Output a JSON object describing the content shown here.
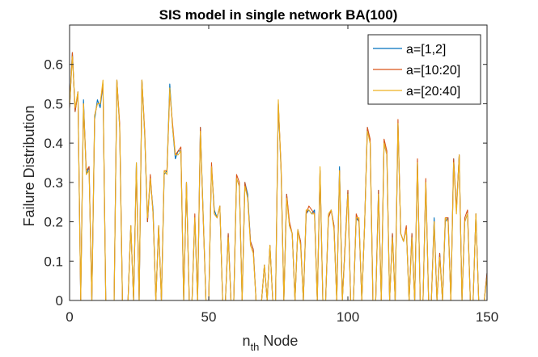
{
  "chart_data": {
    "type": "line",
    "title": "SIS model in single network BA(100)",
    "xlabel": {
      "main": "n",
      "sub": "th",
      "rest": " Node"
    },
    "ylabel": "Failure Distribution",
    "xlim": [
      0,
      150
    ],
    "ylim": [
      0,
      0.7
    ],
    "xticks": [
      0,
      50,
      100,
      150
    ],
    "yticks": [
      0,
      0.1,
      0.2,
      0.3,
      0.4,
      0.5,
      0.6
    ],
    "ytick_labels": [
      "0",
      "0.1",
      "0.2",
      "0.3",
      "0.4",
      "0.5",
      "0.6"
    ],
    "grid": false,
    "legend_position": "top-right",
    "x": [
      0,
      1,
      2,
      3,
      4,
      5,
      6,
      7,
      8,
      9,
      10,
      11,
      12,
      13,
      14,
      15,
      16,
      17,
      18,
      19,
      20,
      21,
      22,
      23,
      24,
      25,
      26,
      27,
      28,
      29,
      30,
      31,
      32,
      33,
      34,
      35,
      36,
      37,
      38,
      39,
      40,
      41,
      42,
      43,
      44,
      45,
      46,
      47,
      48,
      49,
      50,
      51,
      52,
      53,
      54,
      55,
      56,
      57,
      58,
      59,
      60,
      61,
      62,
      63,
      64,
      65,
      66,
      67,
      68,
      69,
      70,
      71,
      72,
      73,
      74,
      75,
      76,
      77,
      78,
      79,
      80,
      81,
      82,
      83,
      84,
      85,
      86,
      87,
      88,
      89,
      90,
      91,
      92,
      93,
      94,
      95,
      96,
      97,
      98,
      99,
      100,
      101,
      102,
      103,
      104,
      105,
      106,
      107,
      108,
      109,
      110,
      111,
      112,
      113,
      114,
      115,
      116,
      117,
      118,
      119,
      120,
      121,
      122,
      123,
      124,
      125,
      126,
      127,
      128,
      129,
      130,
      131,
      132,
      133,
      134,
      135,
      136,
      137,
      138,
      139,
      140,
      141,
      142,
      143,
      144,
      145,
      146,
      147,
      148,
      149,
      150
    ],
    "series": [
      {
        "name": "a=[1,2]",
        "color": "#0072BD",
        "values": [
          0.49,
          0.63,
          0.48,
          0.53,
          0,
          0.51,
          0.32,
          0.34,
          0,
          0.46,
          0.51,
          0.49,
          0.55,
          0,
          0,
          0,
          0,
          0.56,
          0.44,
          0,
          0,
          0,
          0.19,
          0,
          0.35,
          0,
          0.56,
          0.42,
          0.2,
          0.31,
          0.23,
          0,
          0.19,
          0,
          0.32,
          0.33,
          0.55,
          0.44,
          0.36,
          0.38,
          0.38,
          0,
          0.3,
          0,
          0,
          0.21,
          0,
          0.44,
          0.22,
          0,
          0,
          0.34,
          0.23,
          0.21,
          0.24,
          0,
          0,
          0.17,
          0,
          0,
          0.31,
          0.29,
          0,
          0.3,
          0.27,
          0.15,
          0.13,
          0,
          0,
          0,
          0.09,
          0,
          0.14,
          0,
          0,
          0.5,
          0.33,
          0,
          0.27,
          0.19,
          0.17,
          0,
          0.18,
          0.15,
          0,
          0.22,
          0.23,
          0.22,
          0.23,
          0,
          0.33,
          0,
          0,
          0.21,
          0.23,
          0.19,
          0,
          0.34,
          0,
          0.14,
          0.28,
          0,
          0,
          0.21,
          0.2,
          0,
          0.19,
          0.44,
          0.4,
          0,
          0,
          0.28,
          0,
          0.4,
          0.37,
          0,
          0.17,
          0,
          0.45,
          0.17,
          0.15,
          0.18,
          0,
          0.17,
          0,
          0.35,
          0,
          0,
          0.3,
          0,
          0,
          0.21,
          0,
          0.12,
          0,
          0.2,
          0.21,
          0,
          0.36,
          0.23,
          0.37,
          0,
          0.2,
          0.22,
          0,
          0,
          0.22,
          0,
          0,
          0,
          0.07
        ]
      },
      {
        "name": "a=[10:20]",
        "color": "#D95319",
        "values": [
          0.49,
          0.63,
          0.48,
          0.53,
          0,
          0.5,
          0.33,
          0.34,
          0,
          0.47,
          0.5,
          0.5,
          0.55,
          0,
          0,
          0,
          0,
          0.56,
          0.45,
          0,
          0,
          0,
          0.19,
          0,
          0.34,
          0,
          0.56,
          0.43,
          0.2,
          0.32,
          0.22,
          0,
          0.19,
          0,
          0.33,
          0.33,
          0.53,
          0.45,
          0.37,
          0.38,
          0.39,
          0,
          0.3,
          0,
          0,
          0.22,
          0,
          0.44,
          0.21,
          0,
          0,
          0.35,
          0.22,
          0.21,
          0.24,
          0,
          0,
          0.17,
          0,
          0,
          0.32,
          0.3,
          0,
          0.3,
          0.26,
          0.15,
          0.13,
          0,
          0,
          0,
          0.09,
          0,
          0.14,
          0,
          0,
          0.5,
          0.34,
          0,
          0.27,
          0.2,
          0.17,
          0,
          0.18,
          0.15,
          0,
          0.22,
          0.24,
          0.23,
          0.22,
          0,
          0.33,
          0,
          0,
          0.21,
          0.23,
          0.19,
          0,
          0.33,
          0,
          0.14,
          0.28,
          0,
          0,
          0.22,
          0.2,
          0,
          0.19,
          0.44,
          0.41,
          0,
          0,
          0.28,
          0,
          0.41,
          0.38,
          0,
          0.17,
          0,
          0.46,
          0.17,
          0.15,
          0.19,
          0,
          0.17,
          0,
          0.36,
          0,
          0,
          0.31,
          0,
          0,
          0.2,
          0,
          0.12,
          0,
          0.21,
          0.21,
          0,
          0.36,
          0.23,
          0.37,
          0,
          0.21,
          0.23,
          0,
          0,
          0.22,
          0,
          0,
          0,
          0.07
        ]
      },
      {
        "name": "a=[20:40]",
        "color": "#EDB120",
        "values": [
          0.49,
          0.62,
          0.49,
          0.53,
          0,
          0.5,
          0.32,
          0.33,
          0,
          0.47,
          0.5,
          0.5,
          0.56,
          0,
          0,
          0,
          0,
          0.56,
          0.44,
          0,
          0,
          0,
          0.19,
          0,
          0.35,
          0,
          0.56,
          0.42,
          0.21,
          0.31,
          0.22,
          0,
          0.19,
          0,
          0.33,
          0.32,
          0.54,
          0.44,
          0.37,
          0.37,
          0.38,
          0,
          0.3,
          0,
          0,
          0.21,
          0,
          0.43,
          0.22,
          0,
          0,
          0.34,
          0.22,
          0.21,
          0.24,
          0,
          0,
          0.16,
          0,
          0,
          0.31,
          0.29,
          0,
          0.29,
          0.26,
          0.14,
          0.12,
          0,
          0,
          0,
          0.09,
          0,
          0.14,
          0,
          0,
          0.51,
          0.33,
          0,
          0.26,
          0.19,
          0.17,
          0,
          0.18,
          0.14,
          0,
          0.23,
          0.23,
          0.22,
          0.22,
          0,
          0.34,
          0,
          0,
          0.22,
          0.23,
          0.18,
          0,
          0.33,
          0,
          0.13,
          0.27,
          0,
          0,
          0.21,
          0.21,
          0,
          0.19,
          0.43,
          0.4,
          0,
          0,
          0.27,
          0,
          0.4,
          0.37,
          0,
          0.16,
          0,
          0.45,
          0.17,
          0.15,
          0.18,
          0,
          0.16,
          0,
          0.35,
          0,
          0,
          0.3,
          0,
          0,
          0.2,
          0,
          0.11,
          0,
          0.21,
          0.2,
          0,
          0.35,
          0.22,
          0.37,
          0,
          0.2,
          0.22,
          0,
          0,
          0.22,
          0,
          0,
          0,
          0.06
        ]
      }
    ]
  }
}
